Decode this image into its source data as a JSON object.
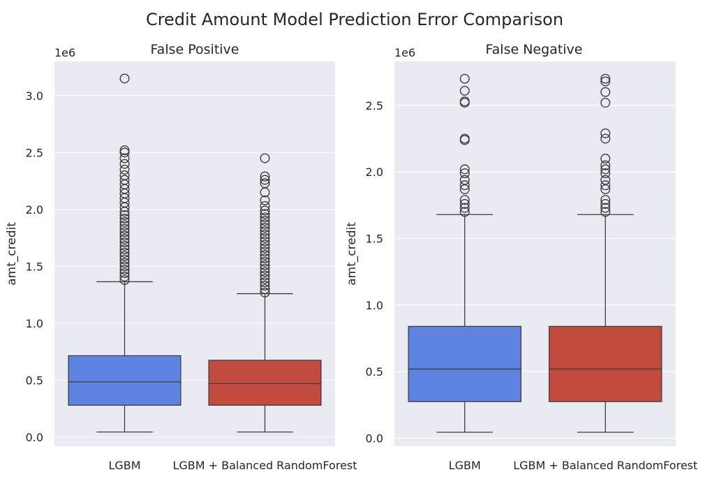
{
  "figure": {
    "title": "Credit Amount Model Prediction Error Comparison"
  },
  "colors": {
    "panel_bg": "#eaeaf2",
    "grid": "#ffffff",
    "outline": "#3d3d3d",
    "flier_edge": "#3d3d3d"
  },
  "chart_data": [
    {
      "type": "box",
      "title": "False Positive",
      "xlabel": "",
      "ylabel": "amt_credit",
      "y_scale_label": "1e6",
      "ylim": [
        -0.08,
        3.3
      ],
      "yticks": [
        0.0,
        0.5,
        1.0,
        1.5,
        2.0,
        2.5,
        3.0
      ],
      "ytick_labels": [
        "0.0",
        "0.5",
        "1.0",
        "1.5",
        "2.0",
        "2.5",
        "3.0"
      ],
      "grid": true,
      "categories": [
        "LGBM",
        "LGBM + Balanced RandomForest"
      ],
      "series": [
        {
          "category": "LGBM",
          "color": "#5f83e0",
          "min": 0.045,
          "q1": 0.28,
          "median": 0.485,
          "q3": 0.715,
          "max": 1.365,
          "outliers": [
            1.38,
            1.41,
            1.44,
            1.47,
            1.5,
            1.53,
            1.56,
            1.59,
            1.62,
            1.65,
            1.68,
            1.71,
            1.74,
            1.77,
            1.8,
            1.83,
            1.86,
            1.89,
            1.92,
            1.95,
            1.98,
            2.02,
            2.06,
            2.1,
            2.14,
            2.18,
            2.22,
            2.26,
            2.3,
            2.35,
            2.4,
            2.45,
            2.5,
            2.52,
            3.15
          ]
        },
        {
          "category": "LGBM + Balanced RandomForest",
          "color": "#c24b3f",
          "min": 0.045,
          "q1": 0.28,
          "median": 0.47,
          "q3": 0.675,
          "max": 1.26,
          "outliers": [
            1.27,
            1.3,
            1.33,
            1.36,
            1.39,
            1.42,
            1.45,
            1.48,
            1.51,
            1.54,
            1.57,
            1.6,
            1.63,
            1.66,
            1.69,
            1.72,
            1.75,
            1.78,
            1.81,
            1.84,
            1.87,
            1.9,
            1.93,
            1.96,
            1.99,
            2.03,
            2.08,
            2.15,
            2.23,
            2.26,
            2.29,
            2.45
          ]
        }
      ]
    },
    {
      "type": "box",
      "title": "False Negative",
      "xlabel": "",
      "ylabel": "amt_credit",
      "y_scale_label": "1e6",
      "ylim": [
        -0.06,
        2.83
      ],
      "yticks": [
        0.0,
        0.5,
        1.0,
        1.5,
        2.0,
        2.5
      ],
      "ytick_labels": [
        "0.0",
        "0.5",
        "1.0",
        "1.5",
        "2.0",
        "2.5"
      ],
      "grid": true,
      "categories": [
        "LGBM",
        "LGBM + Balanced RandomForest"
      ],
      "series": [
        {
          "category": "LGBM",
          "color": "#5f83e0",
          "min": 0.045,
          "q1": 0.275,
          "median": 0.52,
          "q3": 0.84,
          "max": 1.68,
          "outliers": [
            1.7,
            1.73,
            1.76,
            1.79,
            1.87,
            1.9,
            1.94,
            1.99,
            2.02,
            2.24,
            2.25,
            2.52,
            2.53,
            2.61,
            2.7
          ]
        },
        {
          "category": "LGBM + Balanced RandomForest",
          "color": "#c24b3f",
          "min": 0.045,
          "q1": 0.275,
          "median": 0.52,
          "q3": 0.84,
          "max": 1.68,
          "outliers": [
            1.7,
            1.73,
            1.76,
            1.79,
            1.87,
            1.9,
            1.94,
            1.99,
            2.02,
            2.05,
            2.1,
            2.25,
            2.29,
            2.52,
            2.6,
            2.68,
            2.7
          ]
        }
      ]
    }
  ]
}
